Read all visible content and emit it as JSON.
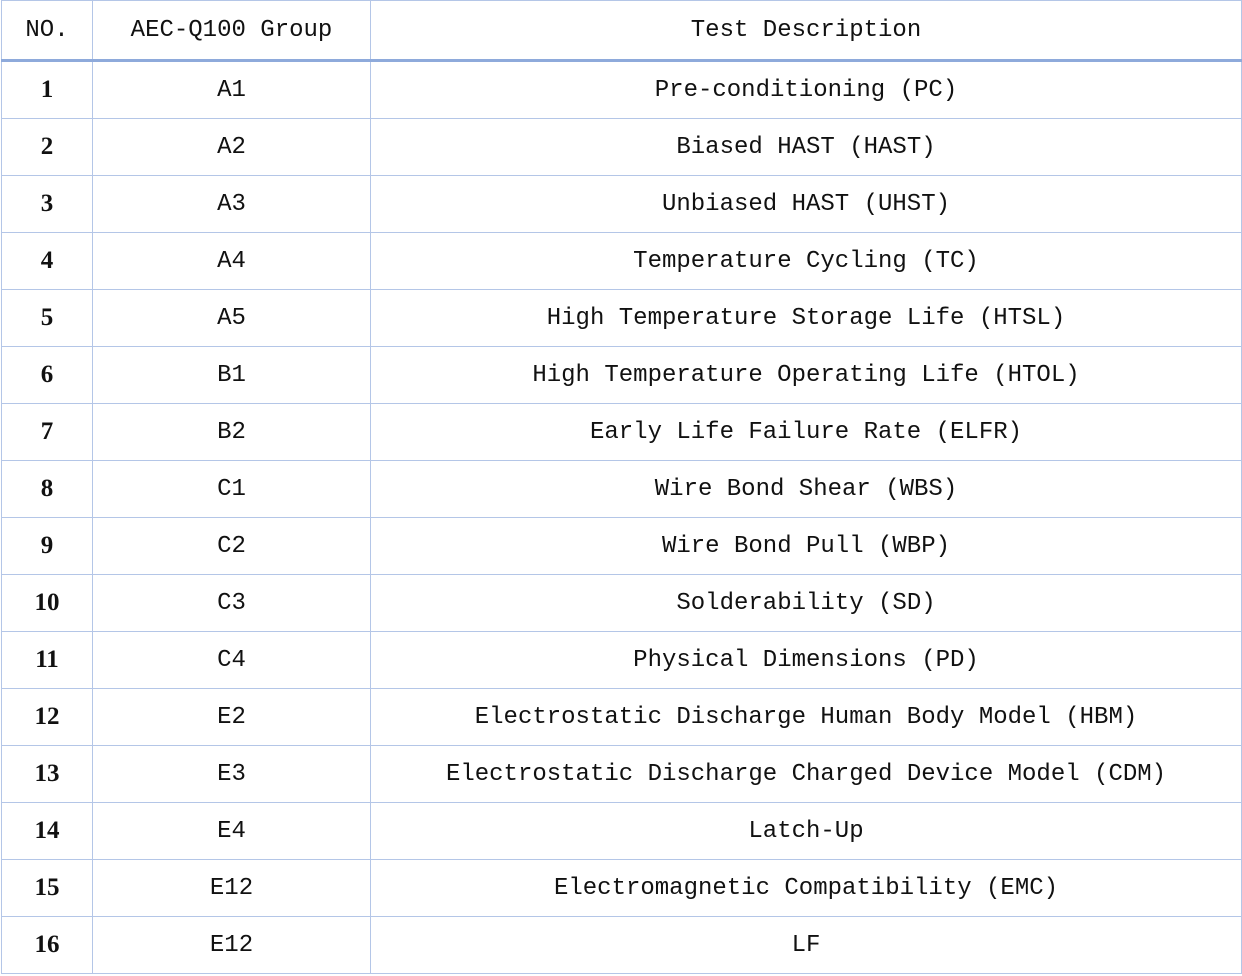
{
  "table": {
    "headers": [
      "NO.",
      "AEC-Q100 Group",
      "Test Description"
    ],
    "rows": [
      {
        "no": "1",
        "group": "A1",
        "description": "Pre-conditioning (PC)"
      },
      {
        "no": "2",
        "group": "A2",
        "description": "Biased HAST (HAST)"
      },
      {
        "no": "3",
        "group": "A3",
        "description": "Unbiased HAST (UHST)"
      },
      {
        "no": "4",
        "group": "A4",
        "description": "Temperature Cycling (TC)"
      },
      {
        "no": "5",
        "group": "A5",
        "description": "High Temperature Storage Life (HTSL)"
      },
      {
        "no": "6",
        "group": "B1",
        "description": "High Temperature Operating Life (HTOL)"
      },
      {
        "no": "7",
        "group": "B2",
        "description": "Early Life Failure Rate (ELFR)"
      },
      {
        "no": "8",
        "group": "C1",
        "description": "Wire Bond Shear (WBS)"
      },
      {
        "no": "9",
        "group": "C2",
        "description": "Wire Bond Pull (WBP)"
      },
      {
        "no": "10",
        "group": "C3",
        "description": "Solderability (SD)"
      },
      {
        "no": "11",
        "group": "C4",
        "description": "Physical Dimensions (PD)"
      },
      {
        "no": "12",
        "group": "E2",
        "description": "Electrostatic Discharge Human Body Model (HBM)"
      },
      {
        "no": "13",
        "group": "E3",
        "description": "Electrostatic Discharge Charged Device Model (CDM)"
      },
      {
        "no": "14",
        "group": "E4",
        "description": "Latch-Up"
      },
      {
        "no": "15",
        "group": "E12",
        "description": "Electromagnetic Compatibility (EMC)"
      },
      {
        "no": "16",
        "group": "E12",
        "description": "LF"
      }
    ]
  }
}
